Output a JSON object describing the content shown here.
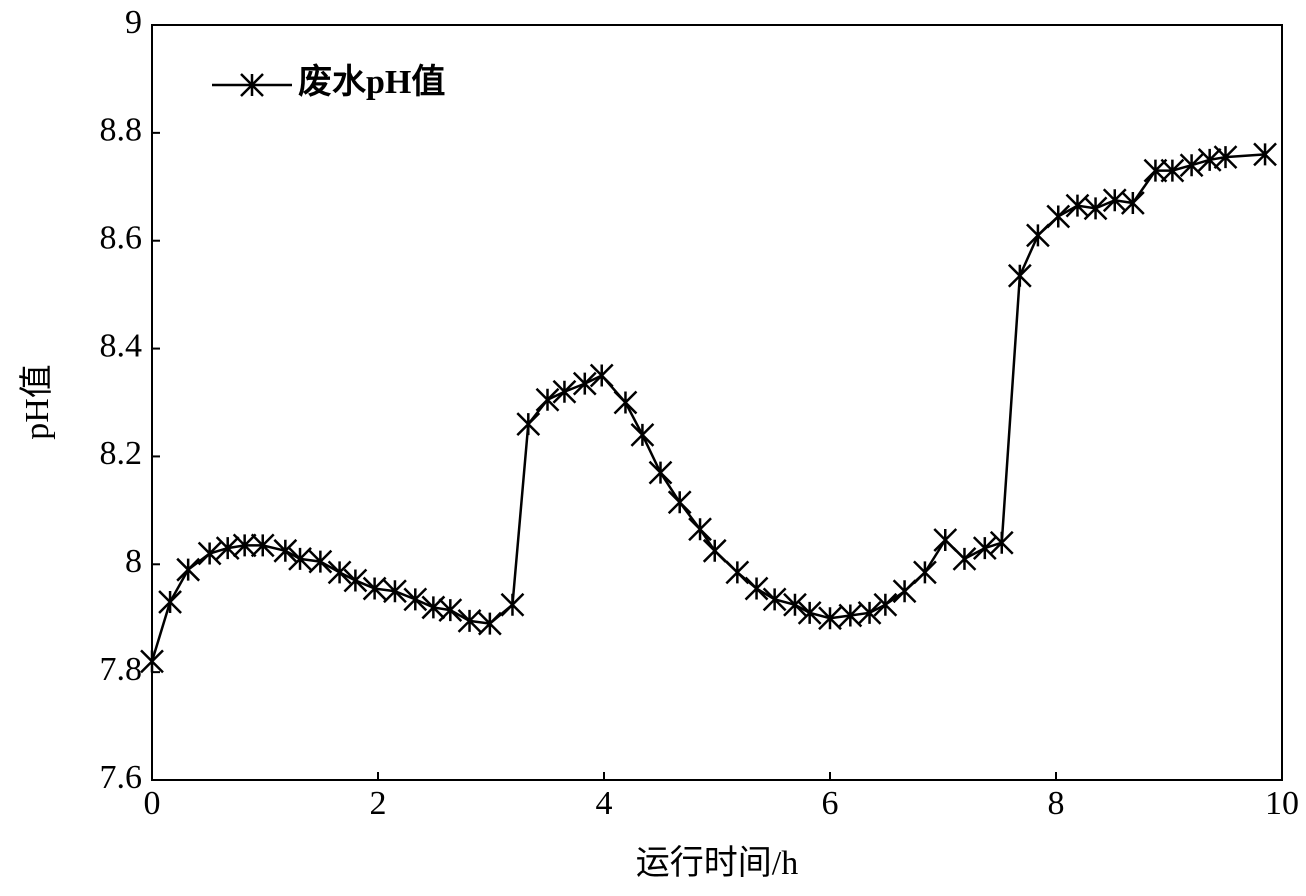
{
  "chart_data": {
    "type": "line",
    "x_label": "运行时间/h",
    "y_label": "pH值",
    "x": [
      0,
      0.16,
      0.32,
      0.51,
      0.67,
      0.82,
      0.98,
      1.18,
      1.31,
      1.49,
      1.66,
      1.8,
      1.97,
      2.15,
      2.33,
      2.49,
      2.64,
      2.81,
      2.99,
      3.19,
      3.33,
      3.5,
      3.65,
      3.83,
      3.98,
      4.19,
      4.34,
      4.5,
      4.67,
      4.85,
      4.98,
      5.18,
      5.35,
      5.51,
      5.69,
      5.82,
      6.0,
      6.18,
      6.35,
      6.49,
      6.66,
      6.84,
      7.02,
      7.19,
      7.37,
      7.52,
      7.68,
      7.84,
      8.02,
      8.19,
      8.35,
      8.52,
      8.68,
      8.88,
      9.03,
      9.2,
      9.36,
      9.5,
      9.85
    ],
    "series": [
      {
        "name": "废水pH值",
        "color": "#000000",
        "marker": "asterisk",
        "values": [
          7.82,
          7.93,
          7.99,
          8.02,
          8.03,
          8.035,
          8.035,
          8.025,
          8.01,
          8.005,
          7.985,
          7.97,
          7.955,
          7.95,
          7.935,
          7.92,
          7.915,
          7.895,
          7.89,
          7.925,
          8.26,
          8.305,
          8.32,
          8.335,
          8.35,
          8.3,
          8.24,
          8.17,
          8.115,
          8.065,
          8.025,
          7.985,
          7.955,
          7.935,
          7.925,
          7.91,
          7.9,
          7.905,
          7.91,
          7.925,
          7.95,
          7.985,
          8.045,
          8.01,
          8.03,
          8.04,
          8.535,
          8.61,
          8.645,
          8.665,
          8.66,
          8.675,
          8.67,
          8.73,
          8.73,
          8.74,
          8.75,
          8.755,
          8.76
        ]
      }
    ],
    "xlim": [
      0,
      10
    ],
    "xticks": [
      0,
      2,
      4,
      6,
      8,
      10
    ],
    "ylim": [
      7.6,
      9
    ],
    "yticks": [
      7.6,
      7.8,
      8,
      8.2,
      8.4,
      8.6,
      8.8,
      9
    ],
    "grid": false,
    "legend": "upper left"
  }
}
